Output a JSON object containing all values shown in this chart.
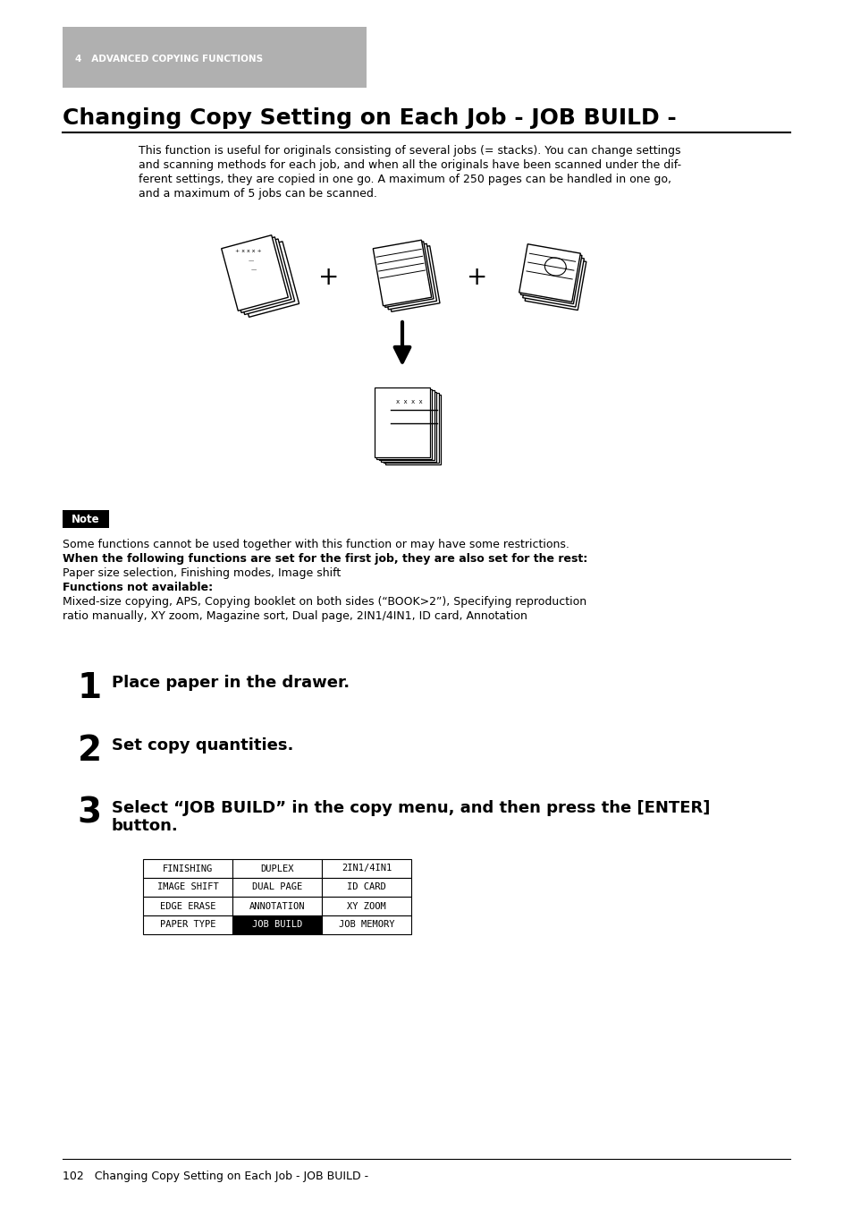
{
  "page_bg": "#ffffff",
  "header_bg": "#b0b0b0",
  "header_text": "4   ADVANCED COPYING FUNCTIONS",
  "header_text_color": "#ffffff",
  "title": "Changing Copy Setting on Each Job - JOB BUILD -",
  "body_text_lines": [
    "This function is useful for originals consisting of several jobs (= stacks). You can change settings",
    "and scanning methods for each job, and when all the originals have been scanned under the dif-",
    "ferent settings, they are copied in one go. A maximum of 250 pages can be handled in one go,",
    "and a maximum of 5 jobs can be scanned."
  ],
  "note_label": "Note",
  "note_line1": "Some functions cannot be used together with this function or may have some restrictions.",
  "note_bold1": "When the following functions are set for the first job, they are also set for the rest:",
  "note_line2": "Paper size selection, Finishing modes, Image shift",
  "note_bold2": "Functions not available:",
  "note_line3": "Mixed-size copying, APS, Copying booklet on both sides (“BOOK>2”), Specifying reproduction",
  "note_line4": "ratio manually, XY zoom, Magazine sort, Dual page, 2IN1/4IN1, ID card, Annotation",
  "step1_num": "1",
  "step1_text": "Place paper in the drawer.",
  "step2_num": "2",
  "step2_text": "Set copy quantities.",
  "step3_num": "3",
  "step3_line1": "Select “JOB BUILD” in the copy menu, and then press the [ENTER]",
  "step3_line2": "button.",
  "table_rows": [
    [
      "FINISHING",
      "DUPLEX",
      "2IN1/4IN1"
    ],
    [
      "IMAGE SHIFT",
      "DUAL PAGE",
      "ID CARD"
    ],
    [
      "EDGE ERASE",
      "ANNOTATION",
      "XY ZOOM"
    ],
    [
      "PAPER TYPE",
      "JOB BUILD",
      "JOB MEMORY"
    ]
  ],
  "table_highlight_row": 3,
  "table_highlight_col": 1,
  "footer_text": "102   Changing Copy Setting on Each Job - JOB BUILD -"
}
